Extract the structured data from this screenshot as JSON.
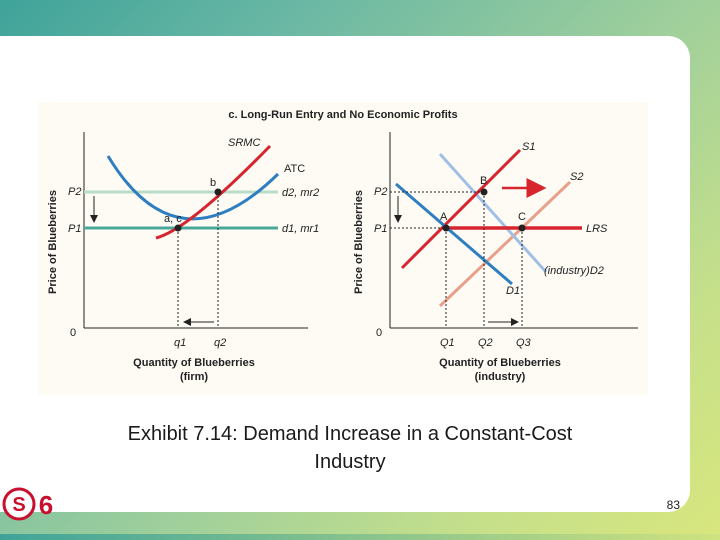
{
  "figure": {
    "title": "c. Long-Run Entry and No Economic Profits",
    "firm": {
      "y_axis_label": "Price of Blueberries",
      "x_axis_label_line1": "Quantity of Blueberries",
      "x_axis_label_line2": "(firm)",
      "origin": "0",
      "p2": "P2",
      "p1": "P1",
      "q1": "q1",
      "q2": "q2",
      "srmc": "SRMC",
      "atc": "ATC",
      "point_b": "b",
      "point_ac": "a, c",
      "d2_mr2": "d2, mr2",
      "d1_mr1": "d1, mr1"
    },
    "industry": {
      "y_axis_label": "Price of Blueberries",
      "x_axis_label_line1": "Quantity of Blueberries",
      "x_axis_label_line2": "(industry)",
      "origin": "0",
      "p2": "P2",
      "p1": "P1",
      "Q1": "Q1",
      "Q2": "Q2",
      "Q3": "Q3",
      "s1": "S1",
      "s2": "S2",
      "lrs": "LRS",
      "d1": "D1",
      "d2": "(industry)D2",
      "point_A": "A",
      "point_B": "B",
      "point_C": "C"
    },
    "colors": {
      "blue": "#2f7fc0",
      "red": "#d6252f",
      "light_red": "#e9a08a",
      "light_blue": "#9fbfe6",
      "teal": "#4aa89a",
      "light_green": "#b9dcc8"
    }
  },
  "caption_line1": "Exhibit 7.14: Demand Increase in a Constant-Cost",
  "caption_line2": "Industry",
  "logo_text": "S",
  "logo_number": "6",
  "page_number": "83"
}
